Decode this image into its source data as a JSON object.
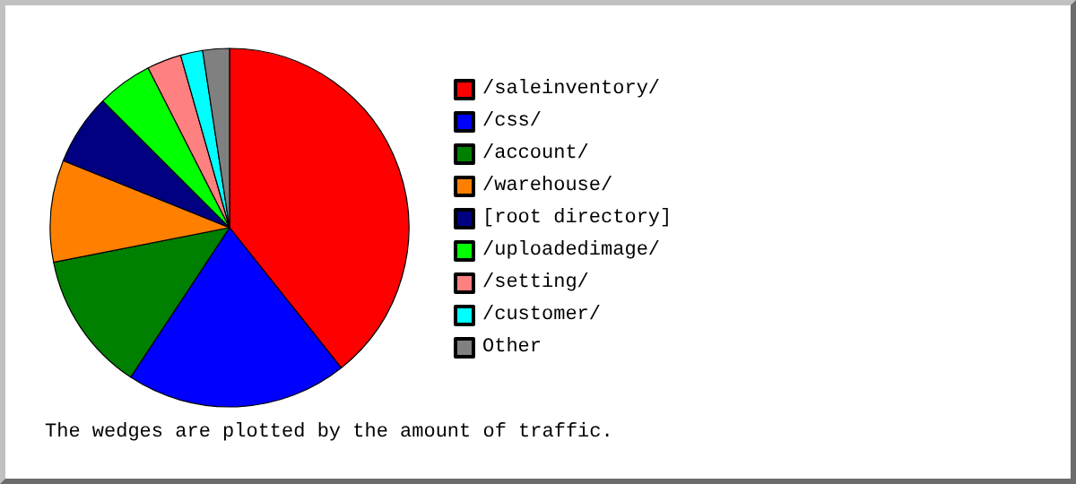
{
  "chart_data": {
    "type": "pie",
    "categories": [
      "/saleinventory/",
      "/css/",
      "/account/",
      "/warehouse/",
      "[root directory]",
      "/uploadedimage/",
      "/setting/",
      "/customer/",
      "Other"
    ],
    "values": [
      39.3,
      20,
      12.6,
      9.2,
      6.4,
      5,
      3.1,
      2,
      2.4
    ],
    "colors": [
      "#ff0000",
      "#0000ff",
      "#008000",
      "#ff8000",
      "#000080",
      "#00ff00",
      "#ff8080",
      "#00ffff",
      "#808080"
    ],
    "legend": "right",
    "annotations": [
      "The wedges are plotted by the amount of traffic."
    ]
  }
}
